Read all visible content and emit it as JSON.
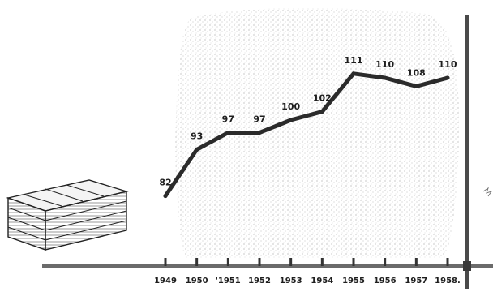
{
  "chart_data": {
    "type": "line",
    "x": [
      "1949",
      "1950",
      "1951",
      "1952",
      "1953",
      "1954",
      "1955",
      "1956",
      "1957",
      "1958"
    ],
    "x_tick_labels": [
      "1949",
      "1950",
      "'1951",
      "1952",
      "1953",
      "1954",
      "1955",
      "1956",
      "1957",
      "1958."
    ],
    "series": [
      {
        "values": [
          82,
          93,
          97,
          97,
          100,
          102,
          111,
          110,
          108,
          110
        ]
      }
    ],
    "data_labels": [
      "82",
      "93",
      "97",
      "97",
      "100",
      "102",
      "111",
      "110",
      "108",
      "110"
    ],
    "ylim": [
      70,
      120
    ],
    "grid": false,
    "colors": {
      "line": "#2b2b2b",
      "background_stipple": "#d9d9d9",
      "axis": "#5a5a5a",
      "lumber_stack": "#3a3a3a"
    },
    "decorations": {
      "left_icon": "lumber-stack-icon",
      "right_edge": "vertical-axis-bar-icon"
    }
  }
}
